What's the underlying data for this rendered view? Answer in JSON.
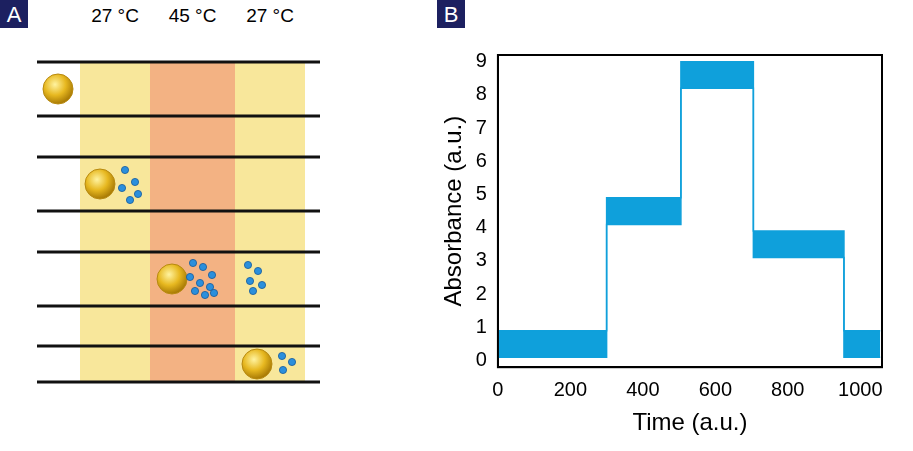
{
  "panels": [
    {
      "letter": "A",
      "zone_labels": [
        "27 °C",
        "45 °C",
        "27 °C"
      ]
    },
    {
      "letter": "B"
    }
  ],
  "chart_data": {
    "type": "line",
    "x": [
      0,
      300,
      300,
      505,
      505,
      705,
      705,
      955,
      955,
      1055
    ],
    "series": [
      {
        "values": [
          0.1,
          0.1,
          4.1,
          4.1,
          8.2,
          8.2,
          3.1,
          3.1,
          0.1,
          0.1
        ]
      },
      {
        "values": [
          0.9,
          0.9,
          4.9,
          4.9,
          9.0,
          9.0,
          3.9,
          3.9,
          0.9,
          0.9
        ]
      }
    ],
    "color": "#0fa0db",
    "xlabel": "Time (a.u.)",
    "ylabel": "Absorbance (a.u.)",
    "xlim": [
      0,
      1060
    ],
    "ylim": [
      -0.2,
      9.2
    ],
    "xticks": [
      0,
      200,
      400,
      600,
      800,
      1000
    ],
    "yticks": [
      0,
      1,
      2,
      3,
      4,
      5,
      6,
      7,
      8,
      9
    ],
    "grid": false
  }
}
